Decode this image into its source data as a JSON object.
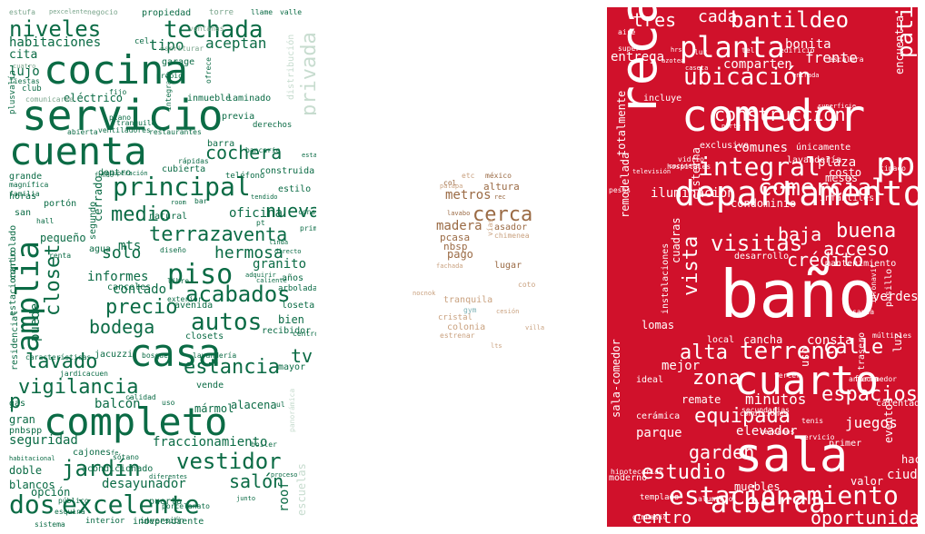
{
  "left_cloud": {
    "words": [
      "estufa",
      "pexcelente",
      "negocio",
      "propiedad",
      "torre",
      "llame",
      "valle",
      "niveles",
      "techada",
      "habitaciones",
      "cel",
      "tipo",
      "aceptan",
      "cocina",
      "cita",
      "garage",
      "lujo",
      "servicio",
      "club",
      "eléctrico",
      "inmueble",
      "laminado",
      "privada",
      "cuenta",
      "cochera",
      "principal",
      "medio",
      "terraza",
      "venta",
      "solo",
      "piso",
      "hermosa",
      "closet",
      "amplia",
      "informes",
      "acabados",
      "precio",
      "autos",
      "bodega",
      "casa",
      "lavado",
      "vigilancia",
      "estancia",
      "completo",
      "seguridad",
      "jardín",
      "vestidor",
      "dos",
      "excelente",
      "salón",
      "desayunador",
      "puerta",
      "independiente",
      "bien",
      "tv",
      "nueva",
      "oficina",
      "granito",
      "p",
      "gran",
      "doble",
      "blancos",
      "opción",
      "alacena",
      "fraccionamiento",
      "balcón",
      "mayor",
      "recibidor",
      "años",
      "escuelas",
      "residencial",
      "estacionario",
      "grande",
      "horas",
      "portón",
      "san",
      "cajones",
      "roof",
      "sistema",
      "interior",
      "inversión",
      "porcelanato",
      "esquina",
      "público",
      "acondicionado",
      "boiler",
      "jacuzzi",
      "contado",
      "exterior",
      "avenida",
      "loseta",
      "puede",
      "bar",
      "pequeño",
      "controlado",
      "segundo",
      "cerrado",
      "agua",
      "mts",
      "natural",
      "dentro",
      "barra",
      "bancario",
      "cubierta",
      "construida",
      "teléfono",
      "estilo",
      "derechos",
      "restaurantes",
      "ventiladores",
      "abierta",
      "plano",
      "previa",
      "integrado",
      "ofrece",
      "escriturar",
      "fiestas",
      "comunicarse",
      "cuatro",
      "propio",
      "ventanas",
      "distribución",
      "plusvalía",
      "familia",
      "magnífica",
      "hall",
      "renta",
      "canceles",
      "diseño",
      "libre",
      "closets",
      "características",
      "bosque",
      "vende",
      "lavandería",
      "mármol",
      "calidad",
      "uso",
      "gas",
      "pnbspp",
      "habitacional",
      "diferentes",
      "fe",
      "panorámica",
      "sótano",
      "junto",
      "proceso",
      "jardicacuen",
      "recuperación",
      "fondo",
      "tendido",
      "conservación",
      "primera",
      "room",
      "linda",
      "directo",
      "arbolada",
      "adquirir",
      "caliente",
      "pt",
      "rápidas",
      "tranquilo",
      "estancia",
      "ul",
      "fijo",
      "centro",
      "estar",
      "palapa"
    ]
  },
  "middle_cloud": {
    "words": [
      "cerca",
      "metros",
      "madera",
      "pago",
      "asador",
      "pcasa",
      "nbsp",
      "altura",
      "lugar",
      "tranquila",
      "colonia",
      "cristal",
      "estrenar",
      "gym",
      "coto",
      "etc",
      "méxico",
      "col",
      "lavabo",
      "chimenea",
      "vías",
      "rec",
      "lts",
      "villa",
      "nocnok",
      "cesión",
      "palapa",
      "fachada"
    ]
  },
  "right_cloud": {
    "words": [
      "tres",
      "cada",
      "bantildeo",
      "planta",
      "ubicación",
      "patio",
      "comedor",
      "recamaras",
      "pp",
      "construcción",
      "integral",
      "departamento",
      "comercial",
      "encuentra",
      "acceso",
      "crédito",
      "baja",
      "buena",
      "visitas",
      "vista",
      "centro",
      "alberca",
      "estacionamiento",
      "oportunidad",
      "sala",
      "cuarto",
      "baño",
      "alta",
      "terreno",
      "calle",
      "zona",
      "equipada",
      "estudio",
      "espacios",
      "minutos",
      "elevador",
      "remate",
      "parque",
      "garden",
      "juegos",
      "ciudad",
      "valor",
      "hace",
      "consta",
      "verdes",
      "mejor",
      "lomas",
      "cancha",
      "local",
      "entrega",
      "bonita",
      "frente",
      "comparten",
      "incluye",
      "totalmente",
      "remodelada",
      "cisterna",
      "iluminación",
      "exclusivo",
      "comunes",
      "únicamente",
      "lavandería",
      "plaza",
      "costo",
      "meses",
      "condominio",
      "infantiles",
      "desarrollo",
      "mantenimiento",
      "cuadras",
      "sala-comedor",
      "instalaciones",
      "ideal",
      "cerámica",
      "moderno",
      "gimnasio",
      "templado",
      "hipotecarias",
      "aluminio",
      "muebles",
      "trasero",
      "uso",
      "luz",
      "pasillo",
      "múltiples",
      "infonavit",
      "santa",
      "antecomedor",
      "tercer",
      "tenis",
      "servicio",
      "secundarias",
      "condiciones",
      "calentador",
      "primer",
      "eventos",
      "firma",
      "cercanos",
      "aire",
      "hrs",
      "luz",
      "tel",
      "edificio",
      "super",
      "escalera",
      "azotea",
      "norte",
      "caseta",
      "entrada",
      "superficie",
      "vidrio",
      "hospitales",
      "televisión",
      "cocineta",
      "pesos",
      "conjunto",
      "cercano",
      "cerrada",
      "tinaco",
      "terminados",
      "barda",
      "comodidad",
      "recamaras"
    ]
  },
  "colors": {
    "left_cloud_text": "#0b6b45",
    "left_cloud_light": "#7aa58c",
    "left_cloud_pale": "#c7dccf",
    "middle_cloud_text": "#9b6b45",
    "middle_cloud_light": "#c9a17f",
    "middle_cloud_teal": "#7fb3b7",
    "right_cloud_background": "#d0112b",
    "right_cloud_text": "#ffffff",
    "right_cloud_light": "#f6c5cc"
  }
}
